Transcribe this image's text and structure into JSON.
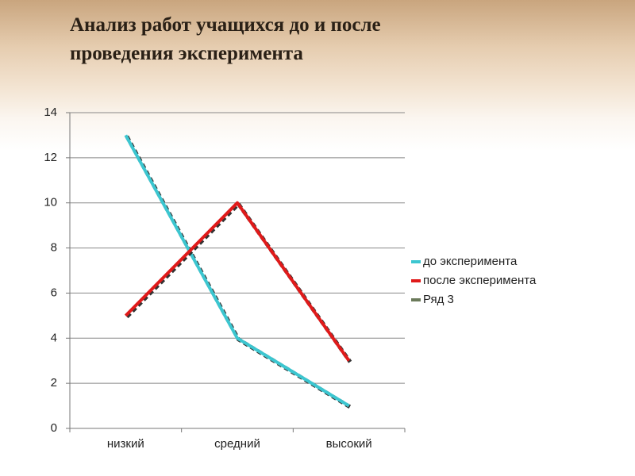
{
  "chart_data": {
    "type": "line",
    "title": "Анализ работ учащихся до и после проведения эксперимента",
    "categories": [
      "низкий",
      "средний",
      "высокий"
    ],
    "series": [
      {
        "name": "до эксперимента",
        "color": "#3cc6d0",
        "values": [
          13,
          4,
          1
        ]
      },
      {
        "name": "после эксперимента",
        "color": "#e01a1a",
        "values": [
          5,
          10,
          3
        ]
      },
      {
        "name": "Ряд 3",
        "color": "#6b7a5a",
        "values": [
          null,
          null,
          null
        ]
      }
    ],
    "ylim": [
      0,
      14
    ],
    "yticks": [
      0,
      2,
      4,
      6,
      8,
      10,
      12,
      14
    ],
    "grid": true,
    "legend": "right"
  }
}
